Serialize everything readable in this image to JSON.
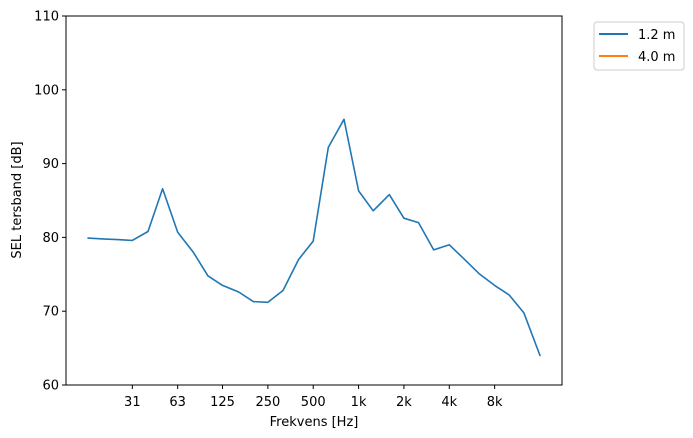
{
  "chart_data": {
    "type": "line",
    "xlabel": "Frekvens [Hz]",
    "ylabel": "SEL tersband [dB]",
    "ylim": [
      60,
      110
    ],
    "yticks": [
      60,
      70,
      80,
      90,
      100,
      110
    ],
    "xscale": "log",
    "xticks": [
      {
        "value": 31.5,
        "label": "31"
      },
      {
        "value": 63,
        "label": "63"
      },
      {
        "value": 125,
        "label": "125"
      },
      {
        "value": 250,
        "label": "250"
      },
      {
        "value": 500,
        "label": "500"
      },
      {
        "value": 1000,
        "label": "1k"
      },
      {
        "value": 2000,
        "label": "2k"
      },
      {
        "value": 4000,
        "label": "4k"
      },
      {
        "value": 8000,
        "label": "8k"
      }
    ],
    "grid": false,
    "legend_position": "outside-top-right",
    "series": [
      {
        "name": "1.2 m",
        "color": "#1f77b4",
        "x": [
          16,
          20,
          25,
          31.5,
          40,
          50,
          63,
          80,
          100,
          125,
          160,
          200,
          250,
          315,
          400,
          500,
          630,
          800,
          1000,
          1250,
          1600,
          2000,
          2500,
          3150,
          4000,
          5000,
          6300,
          8000,
          10000,
          12500,
          16000
        ],
        "values": [
          79.9,
          79.8,
          79.7,
          79.6,
          80.8,
          86.6,
          80.7,
          78.0,
          74.8,
          73.5,
          72.6,
          71.3,
          71.2,
          72.8,
          77.0,
          79.5,
          92.2,
          96.0,
          86.3,
          83.6,
          85.8,
          82.6,
          82.0,
          78.3,
          79.0,
          77.1,
          75.1,
          73.5,
          72.2,
          69.8,
          64.0
        ]
      },
      {
        "name": "4.0 m",
        "color": "#ff7f0e",
        "x": [],
        "values": []
      }
    ]
  }
}
